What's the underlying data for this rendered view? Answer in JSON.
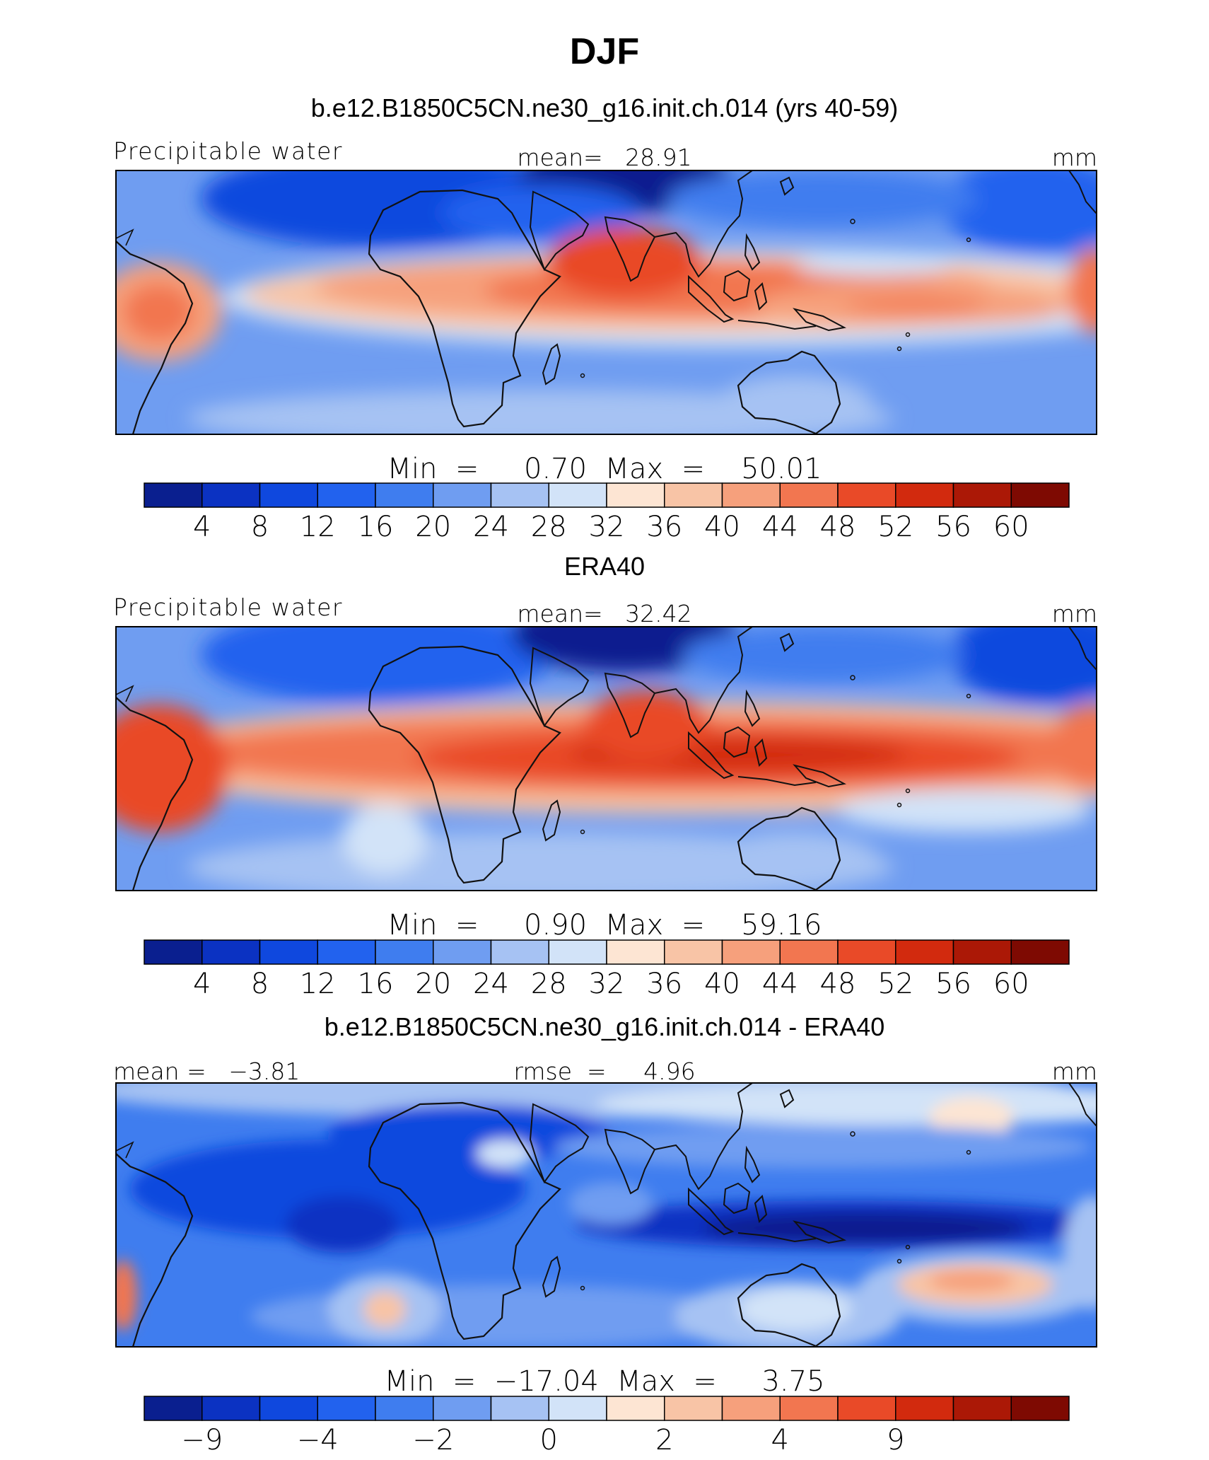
{
  "chart_data": [
    {
      "type": "heatmap",
      "season": "DJF",
      "title": "b.e12.B1850C5CN.ne30_g16.init.ch.014 (yrs 40-59)",
      "left_label": "Precipitable water",
      "center_label": "mean=   28.91",
      "right_label": "mm",
      "minmax": "Min  =     0.70  Max  =    50.01",
      "min": 0.7,
      "max": 50.01,
      "mean": 28.91,
      "colorbar": {
        "ticks": [
          "4",
          "8",
          "12",
          "16",
          "20",
          "24",
          "28",
          "32",
          "36",
          "40",
          "44",
          "48",
          "52",
          "56",
          "60"
        ],
        "colors": [
          "#0a1f8f",
          "#0b32c2",
          "#0f48de",
          "#2262ee",
          "#3f7def",
          "#6f9df1",
          "#a6c2f3",
          "#d2e3f8",
          "#fde5d3",
          "#f8c4a6",
          "#f6a07c",
          "#f27650",
          "#e94a28",
          "#d22a0e",
          "#ab1806",
          "#7e0a02"
        ]
      }
    },
    {
      "type": "heatmap",
      "season": "DJF",
      "title": "ERA40",
      "left_label": "Precipitable water",
      "center_label": "mean=   32.42",
      "right_label": "mm",
      "minmax": "Min  =     0.90  Max  =    59.16",
      "min": 0.9,
      "max": 59.16,
      "mean": 32.42,
      "colorbar": {
        "ticks": [
          "4",
          "8",
          "12",
          "16",
          "20",
          "24",
          "28",
          "32",
          "36",
          "40",
          "44",
          "48",
          "52",
          "56",
          "60"
        ],
        "colors": [
          "#0a1f8f",
          "#0b32c2",
          "#0f48de",
          "#2262ee",
          "#3f7def",
          "#6f9df1",
          "#a6c2f3",
          "#d2e3f8",
          "#fde5d3",
          "#f8c4a6",
          "#f6a07c",
          "#f27650",
          "#e94a28",
          "#d22a0e",
          "#ab1806",
          "#7e0a02"
        ]
      }
    },
    {
      "type": "heatmap",
      "season": "DJF",
      "title": "b.e12.B1850C5CN.ne30_g16.init.ch.014 - ERA40",
      "left_label": "mean =   −3.81",
      "center_label": "rmse  =     4.96",
      "right_label": "mm",
      "minmax": "Min  =  −17.04  Max  =     3.75",
      "min": -17.04,
      "max": 3.75,
      "mean": -3.81,
      "rmse": 4.96,
      "colorbar": {
        "ticks": [
          "−9",
          "−4",
          "−2",
          "0",
          "2",
          "4",
          "9"
        ],
        "colors": [
          "#0a1f8f",
          "#0b32c2",
          "#0f48de",
          "#2262ee",
          "#3f7def",
          "#6f9df1",
          "#a6c2f3",
          "#d2e3f8",
          "#fde5d3",
          "#f8c4a6",
          "#f6a07c",
          "#f27650",
          "#e94a28",
          "#d22a0e",
          "#ab1806",
          "#7e0a02"
        ]
      }
    }
  ],
  "page_title": "DJF"
}
